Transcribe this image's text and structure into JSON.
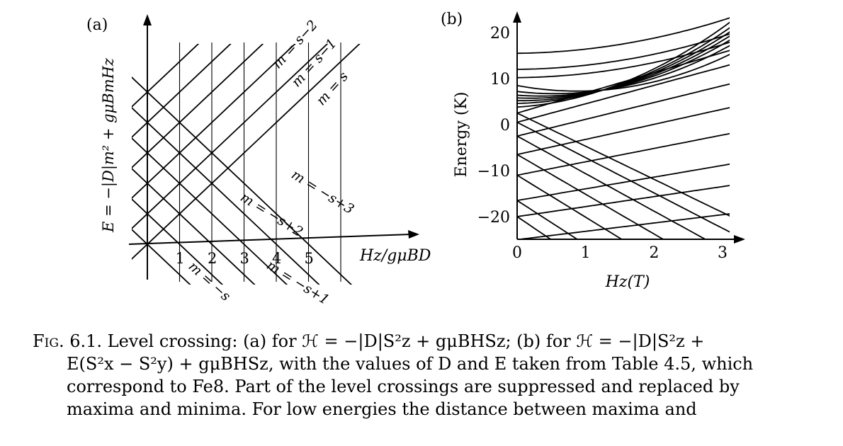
{
  "panel_a": {
    "label": "(a)",
    "y_axis_label": "E = −|D|m² + gμBmHz",
    "x_axis_label": "Hz/gμBD",
    "x_ticks": [
      "1",
      "2",
      "3",
      "4",
      "5"
    ],
    "curve_labels": [
      "m = s−2",
      "m = s−1",
      "m = s",
      "m = −s+3",
      "m = −s+2",
      "m = −s",
      "m = −s+1"
    ]
  },
  "panel_b": {
    "label": "(b)",
    "y_axis_label": "Energy (K)",
    "x_axis_label": "Hz(T)",
    "y_ticks": [
      "20",
      "10",
      "0",
      "−10",
      "−20"
    ],
    "x_ticks": [
      "0",
      "1",
      "2",
      "3"
    ]
  },
  "chart_data": [
    {
      "type": "line",
      "title": "(a)",
      "xlabel": "Hz/gμBD",
      "ylabel": "E = −|D|m² + gμBmHz",
      "x_ticks": [
        1,
        2,
        3,
        4,
        5
      ],
      "xlim": [
        0,
        6
      ],
      "ylim": [
        -2.5,
        6
      ],
      "series": [
        {
          "name": "m = −s",
          "slope": -1,
          "intercept": 0
        },
        {
          "name": "m = −s+1",
          "slope": -1,
          "intercept": 1
        },
        {
          "name": "",
          "slope": -1,
          "intercept": 2
        },
        {
          "name": "",
          "slope": -1,
          "intercept": 3
        },
        {
          "name": "",
          "slope": -1,
          "intercept": 4
        },
        {
          "name": "",
          "slope": -1,
          "intercept": 5
        },
        {
          "name": "m = s",
          "slope": 1,
          "intercept": 0
        },
        {
          "name": "m = s−1",
          "slope": 1,
          "intercept": 1
        },
        {
          "name": "m = s−2",
          "slope": 1,
          "intercept": 2
        },
        {
          "name": "",
          "slope": 1,
          "intercept": 3
        },
        {
          "name": "",
          "slope": 1,
          "intercept": 4
        },
        {
          "name": "",
          "slope": 1,
          "intercept": 5
        }
      ],
      "vertical_gridlines_at": [
        1,
        2,
        3,
        4,
        5,
        6
      ]
    },
    {
      "type": "line",
      "title": "(b)",
      "xlabel": "Hz(T)",
      "ylabel": "Energy (K)",
      "xlim": [
        0,
        3
      ],
      "ylim": [
        -26,
        23
      ],
      "y_ticks": [
        20,
        10,
        0,
        -10,
        -20
      ],
      "x_ticks": [
        0,
        1,
        2,
        3
      ],
      "levels_at_zero_field": [
        15.5,
        12,
        10.2,
        8.5,
        7.2,
        6.4,
        5.8,
        5.2,
        4.6,
        3.8,
        2.5,
        0.5,
        -2.5,
        -6.5,
        -11,
        -16.5,
        -20,
        -25
      ]
    }
  ],
  "caption": {
    "fig_label": "Fig. 6.1.",
    "line1": "Level crossing: (a) for ℋ = −|D|S²z + gμBHSz; (b) for ℋ = −|D|S²z +",
    "line2": "E(S²x − S²y) + gμBHSz, with the values of D and E taken from Table 4.5, which",
    "line3": "correspond to Fe8. Part of the level crossings are suppressed and replaced by",
    "line4": "maxima and minima. For low energies the distance between maxima and"
  }
}
